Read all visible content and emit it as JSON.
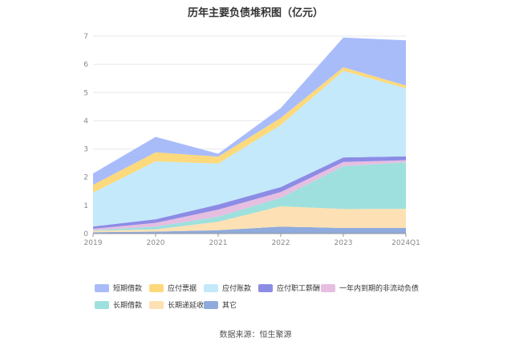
{
  "title": "历年主要负债堆积图（亿元）",
  "source": "数据来源：恒生聚源",
  "chart_data": {
    "type": "area",
    "stacked": true,
    "categories": [
      "2019",
      "2020",
      "2021",
      "2022",
      "2023",
      "2024Q1"
    ],
    "y_ticks": [
      "0",
      "1",
      "2",
      "3",
      "4",
      "5",
      "6",
      "7"
    ],
    "ylim": [
      0,
      7
    ],
    "grid": true,
    "legend_position": "bottom",
    "series": [
      {
        "name": "其它",
        "color": "#8faadc",
        "values": [
          0.05,
          0.07,
          0.12,
          0.25,
          0.2,
          0.2
        ]
      },
      {
        "name": "长期递延收益",
        "color": "#fde1b4",
        "values": [
          0.05,
          0.08,
          0.3,
          0.72,
          0.67,
          0.68
        ]
      },
      {
        "name": "长期借款",
        "color": "#9ee0dd",
        "values": [
          0.02,
          0.1,
          0.18,
          0.3,
          1.52,
          1.65
        ]
      },
      {
        "name": "一年内到期的非流动负债",
        "color": "#e6bee1",
        "values": [
          0.05,
          0.13,
          0.25,
          0.2,
          0.15,
          0.07
        ]
      },
      {
        "name": "应付职工薪酬",
        "color": "#8c8ce6",
        "values": [
          0.08,
          0.13,
          0.18,
          0.18,
          0.16,
          0.14
        ]
      },
      {
        "name": "应付账款",
        "color": "#c4e9fb",
        "values": [
          1.2,
          2.05,
          1.45,
          2.2,
          3.07,
          2.41
        ]
      },
      {
        "name": "应付票据",
        "color": "#fcd97c",
        "values": [
          0.28,
          0.32,
          0.25,
          0.25,
          0.13,
          0.1
        ]
      },
      {
        "name": "短期借款",
        "color": "#a9bcfa",
        "values": [
          0.4,
          0.55,
          0.1,
          0.35,
          1.05,
          1.6
        ]
      }
    ],
    "legend_order": [
      "短期借款",
      "应付票据",
      "应付账款",
      "应付职工薪酬",
      "一年内到期的非流动负债",
      "长期借款",
      "长期递延收益",
      "其它"
    ]
  }
}
